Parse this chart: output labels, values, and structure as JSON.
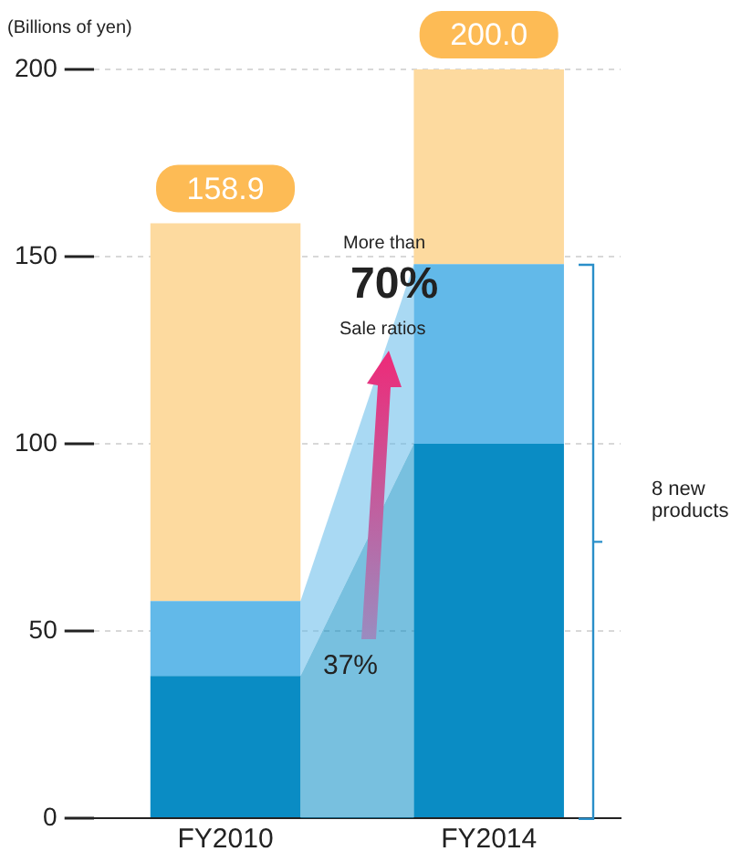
{
  "chart_data": {
    "type": "bar",
    "stacked": true,
    "ylabel": "(Billions of yen)",
    "categories": [
      "FY2010",
      "FY2014"
    ],
    "series": [
      {
        "color": "#0a8cc4",
        "values": [
          38,
          100
        ]
      },
      {
        "color": "#62b9e9",
        "values": [
          20,
          48
        ]
      },
      {
        "color": "#fdda9f",
        "values": [
          100.9,
          52
        ]
      }
    ],
    "ylim": [
      0,
      200
    ],
    "yticks": [
      0,
      50,
      100,
      150,
      200
    ],
    "grid": "y",
    "totals": [
      "158.9",
      "200.0"
    ],
    "annotations": [
      "More than",
      "70%",
      "Sale ratios",
      "37%",
      "8 new products"
    ]
  }
}
